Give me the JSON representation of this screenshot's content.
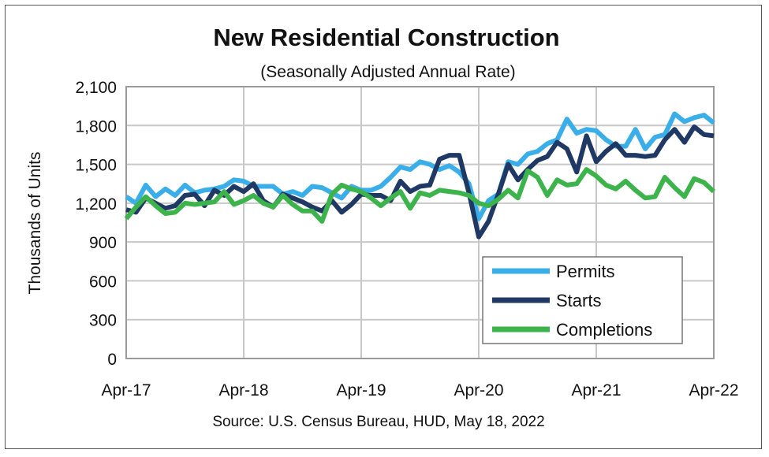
{
  "chart_data": {
    "type": "line",
    "title": "New Residential Construction",
    "subtitle": "(Seasonally Adjusted Annual Rate)",
    "ylabel": "Thousands of Units",
    "xlabel": "",
    "source": "Source:  U.S. Census Bureau, HUD, May 18, 2022",
    "ylim": [
      0,
      2100
    ],
    "yticks": [
      0,
      300,
      600,
      900,
      1200,
      1500,
      1800,
      2100
    ],
    "ytick_labels": [
      "0",
      "300",
      "600",
      "900",
      "1,200",
      "1,500",
      "1,800",
      "2,100"
    ],
    "xtick_labels": [
      "Apr-17",
      "Apr-18",
      "Apr-19",
      "Apr-20",
      "Apr-21",
      "Apr-22"
    ],
    "x_start": "Apr-17",
    "x_end": "Apr-22",
    "x_frequency": "monthly",
    "grid": true,
    "legend_position": "bottom-right",
    "series": [
      {
        "name": "Permits",
        "color": "#3aaee8",
        "values": [
          1250,
          1200,
          1340,
          1250,
          1310,
          1260,
          1340,
          1280,
          1300,
          1310,
          1330,
          1380,
          1370,
          1330,
          1330,
          1330,
          1270,
          1290,
          1260,
          1330,
          1320,
          1280,
          1240,
          1330,
          1300,
          1300,
          1330,
          1400,
          1480,
          1460,
          1520,
          1500,
          1460,
          1490,
          1440,
          1350,
          1080,
          1220,
          1270,
          1520,
          1500,
          1580,
          1600,
          1660,
          1690,
          1850,
          1740,
          1770,
          1760,
          1690,
          1640,
          1640,
          1770,
          1620,
          1710,
          1730,
          1890,
          1830,
          1860,
          1880,
          1820
        ]
      },
      {
        "name": "Starts",
        "color": "#1f3864",
        "values": [
          1150,
          1130,
          1240,
          1200,
          1160,
          1180,
          1260,
          1270,
          1180,
          1300,
          1260,
          1330,
          1290,
          1350,
          1220,
          1170,
          1270,
          1240,
          1210,
          1170,
          1140,
          1220,
          1130,
          1190,
          1270,
          1260,
          1260,
          1220,
          1370,
          1290,
          1330,
          1340,
          1540,
          1570,
          1570,
          1280,
          940,
          1060,
          1270,
          1500,
          1380,
          1460,
          1530,
          1560,
          1670,
          1620,
          1440,
          1720,
          1520,
          1600,
          1660,
          1570,
          1570,
          1560,
          1570,
          1690,
          1770,
          1670,
          1790,
          1730,
          1720
        ]
      },
      {
        "name": "Completions",
        "color": "#3cb44b",
        "values": [
          1080,
          1170,
          1250,
          1180,
          1120,
          1130,
          1200,
          1190,
          1200,
          1210,
          1290,
          1190,
          1220,
          1260,
          1200,
          1170,
          1260,
          1190,
          1140,
          1140,
          1060,
          1270,
          1340,
          1310,
          1290,
          1240,
          1180,
          1240,
          1290,
          1160,
          1280,
          1260,
          1300,
          1290,
          1280,
          1260,
          1200,
          1180,
          1230,
          1300,
          1240,
          1450,
          1400,
          1260,
          1380,
          1340,
          1350,
          1460,
          1410,
          1340,
          1310,
          1370,
          1300,
          1240,
          1250,
          1400,
          1320,
          1250,
          1390,
          1360,
          1290
        ]
      }
    ]
  }
}
